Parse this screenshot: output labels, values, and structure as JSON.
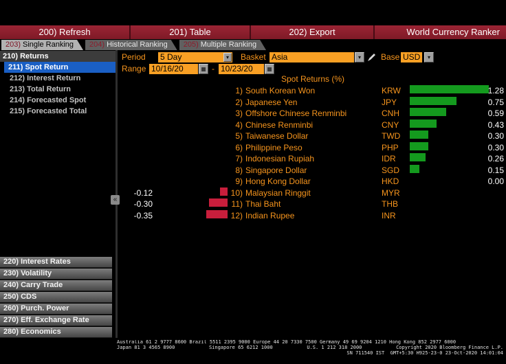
{
  "menubar": {
    "buttons": [
      {
        "label": "200) Refresh"
      },
      {
        "label": "201) Table"
      },
      {
        "label": "202) Export"
      }
    ],
    "app_title": "World Currency Ranker"
  },
  "tabs": [
    {
      "number": "203)",
      "label": "Single Ranking",
      "active": true
    },
    {
      "number": "204)",
      "label": "Historical Ranking",
      "active": false
    },
    {
      "number": "205)",
      "label": "Multiple Ranking",
      "active": false
    }
  ],
  "sidebar": {
    "header": "210) Returns",
    "items": [
      {
        "label": "211) Spot Return",
        "selected": true
      },
      {
        "label": "212) Interest Return",
        "selected": false
      },
      {
        "label": "213) Total Return",
        "selected": false
      },
      {
        "label": "214) Forecasted Spot",
        "selected": false
      },
      {
        "label": "215) Forecasted Total",
        "selected": false
      }
    ],
    "buttons": [
      {
        "label": "220) Interest Rates"
      },
      {
        "label": "230) Volatility"
      },
      {
        "label": "240) Carry Trade"
      },
      {
        "label": "250) CDS"
      },
      {
        "label": "260) Purch. Power"
      },
      {
        "label": "270) Eff. Exchange Rate"
      },
      {
        "label": "280) Economics"
      }
    ],
    "collapse_icon": "«"
  },
  "controls": {
    "period_label": "Period",
    "period_value": "5 Day",
    "basket_label": "Basket",
    "basket_value": "Asia",
    "base_label": "Base",
    "base_value": "USD",
    "range_label": "Range",
    "range_start": "10/16/20",
    "range_separator": "-",
    "range_end": "10/23/20",
    "dropdown_icon": "▾",
    "calendar_icon": "▦"
  },
  "chart_data": {
    "type": "bar",
    "orientation": "horizontal",
    "title": "Spot Returns (%)",
    "ranks": [
      "1)",
      "2)",
      "3)",
      "4)",
      "5)",
      "6)",
      "7)",
      "8)",
      "9)",
      "10)",
      "11)",
      "12)"
    ],
    "categories": [
      "South Korean Won",
      "Japanese Yen",
      "Offshore Chinese Renminbi",
      "Chinese Renminbi",
      "Taiwanese Dollar",
      "Philippine Peso",
      "Indonesian Rupiah",
      "Singapore Dollar",
      "Hong Kong Dollar",
      "Malaysian Ringgit",
      "Thai Baht",
      "Indian Rupee"
    ],
    "codes": [
      "KRW",
      "JPY",
      "CNH",
      "CNY",
      "TWD",
      "PHP",
      "IDR",
      "SGD",
      "HKD",
      "MYR",
      "THB",
      "INR"
    ],
    "values": [
      1.28,
      0.75,
      0.59,
      0.43,
      0.3,
      0.3,
      0.26,
      0.15,
      0.0,
      -0.12,
      -0.3,
      -0.35
    ],
    "xlim": [
      -0.5,
      1.5
    ],
    "positive_color": "#149a1e",
    "negative_color": "#c81e3c",
    "value_color": "#ffffff",
    "label_color": "#f7951d"
  },
  "footer": {
    "line1": "Australia 61 2 9777 8600 Brazil 5511 2395 9000 Europe 44 20 7330 7500 Germany 49 69 9204 1210 Hong Kong 852 2977 6000",
    "line2_segments": [
      "Japan 81 3 4565 8900",
      "Singapore 65 6212 1000",
      "U.S. 1 212 318 2000",
      "Copyright 2020 Bloomberg Finance L.P."
    ],
    "line3": "SN 711540 IST  GMT+5:30 H925-23-0 23-Oct-2020 14:01:04"
  }
}
